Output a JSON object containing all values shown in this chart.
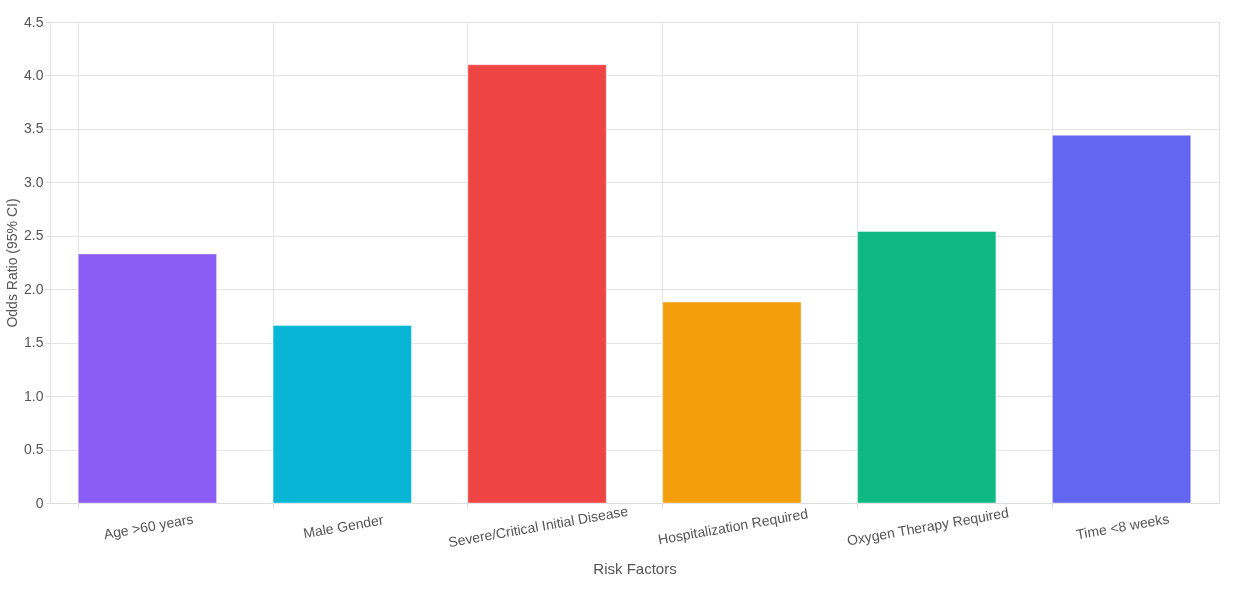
{
  "chart_data": {
    "type": "bar",
    "xlabel": "Risk Factors",
    "ylabel": "Odds Ratio (95% CI)",
    "categories": [
      "Age >60 years",
      "Male Gender",
      "Severe/Critical Initial Disease",
      "Hospitalization Required",
      "Oxygen Therapy Required",
      "Time <8 weeks"
    ],
    "values": [
      2.33,
      1.66,
      4.1,
      1.88,
      2.54,
      3.44
    ],
    "colors": [
      "#8b5cf6",
      "#06b6d4",
      "#ef4444",
      "#f59e0b",
      "#10b981",
      "#6366f1"
    ],
    "ylim": [
      0,
      4.5
    ],
    "yticks": [
      {
        "value": 0,
        "label": "0"
      },
      {
        "value": 0.5,
        "label": "0.5"
      },
      {
        "value": 1,
        "label": "1.0"
      },
      {
        "value": 1.5,
        "label": "1.5"
      },
      {
        "value": 2,
        "label": "2.0"
      },
      {
        "value": 2.5,
        "label": "2.5"
      },
      {
        "value": 3,
        "label": "3.0"
      },
      {
        "value": 3.5,
        "label": "3.5"
      },
      {
        "value": 4,
        "label": "4.0"
      },
      {
        "value": 4.5,
        "label": "4.5"
      }
    ],
    "grid": true
  }
}
